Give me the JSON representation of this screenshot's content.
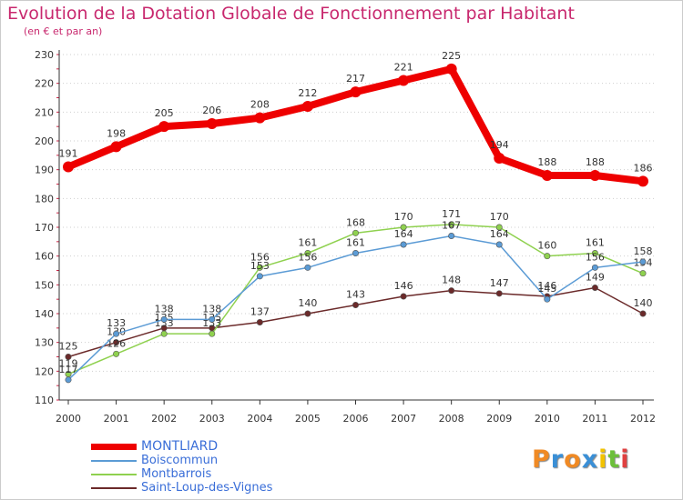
{
  "chart_data": {
    "type": "line",
    "title": "Evolution de la Dotation Globale de Fonctionnement par Habitant",
    "subtitle": "(en € et par an)",
    "xlabel": "",
    "ylabel": "",
    "x": [
      "2000",
      "2001",
      "2002",
      "2003",
      "2004",
      "2005",
      "2006",
      "2007",
      "2008",
      "2009",
      "2010",
      "2011",
      "2012"
    ],
    "ylim": [
      110,
      230
    ],
    "yticks": [
      "110",
      "120",
      "130",
      "140",
      "150",
      "160",
      "170",
      "180",
      "190",
      "200",
      "210",
      "220",
      "230"
    ],
    "grid": "dotted horizontal",
    "legend_position": "bottom-left",
    "series": [
      {
        "name": "MONTLIARD",
        "color": "#ee0000",
        "values": [
          191,
          198,
          205,
          206,
          208,
          212,
          217,
          221,
          225,
          194,
          188,
          188,
          186
        ],
        "labels": [
          "191",
          "198",
          "205",
          "206",
          "208",
          "212",
          "217",
          "221",
          "225",
          "194",
          "188",
          "188",
          "186"
        ]
      },
      {
        "name": "Boiscommun",
        "color": "#5b9bd5",
        "values": [
          117,
          133,
          138,
          138,
          153,
          156,
          161,
          164,
          167,
          164,
          145,
          156,
          158
        ],
        "labels": [
          "117",
          "133",
          "138",
          "138",
          "153",
          "156",
          "161",
          "164",
          "167",
          "164",
          "145",
          "156",
          "158"
        ]
      },
      {
        "name": "Montbarrois",
        "color": "#8fd14f",
        "values": [
          119,
          126,
          133,
          133,
          156,
          161,
          168,
          170,
          171,
          170,
          160,
          161,
          154
        ],
        "labels": [
          "119",
          "126",
          "133",
          "133",
          "156",
          "161",
          "168",
          "170",
          "171",
          "170",
          "160",
          "161",
          "154"
        ]
      },
      {
        "name": "Saint-Loup-des-Vignes",
        "color": "#6b2a2a",
        "values": [
          125,
          130,
          135,
          135,
          137,
          140,
          143,
          146,
          148,
          147,
          146,
          149,
          140
        ],
        "labels": [
          "125",
          "130",
          "135",
          "135",
          "137",
          "140",
          "143",
          "146",
          "148",
          "147",
          "146",
          "149",
          "140"
        ]
      }
    ]
  },
  "logo": {
    "letters": [
      "P",
      "r",
      "o",
      "x",
      "i",
      "t",
      "i"
    ],
    "colors": [
      "#f08a24",
      "#3a8fd6",
      "#f08a24",
      "#3a8fd6",
      "#f2c200",
      "#6cbf3a",
      "#e04040"
    ]
  }
}
